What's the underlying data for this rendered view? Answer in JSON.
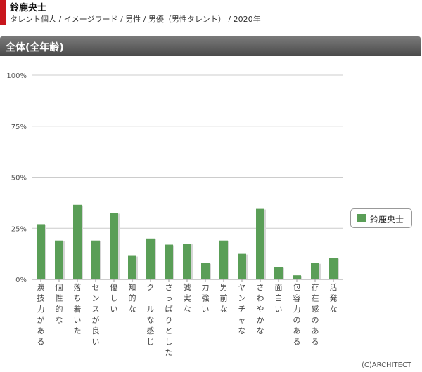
{
  "header": {
    "name": "鈴鹿央士",
    "breadcrumb": "タレント個人 / イメージワード / 男性 / 男優（男性タレント） / 2020年"
  },
  "section": {
    "title": "全体(全年齢)"
  },
  "legend": {
    "label": "鈴鹿央士"
  },
  "credit": "(C)ARCHITECT",
  "colors": {
    "accent": "#c8161d",
    "bar": "#5a9e57",
    "grid": "#cccccc"
  },
  "chart_data": {
    "type": "bar",
    "categories": [
      "演技力がある",
      "個性的な",
      "落ち着いた",
      "センスが良い",
      "優しい",
      "知的な",
      "クールな感じ",
      "さっぱりとした",
      "誠実な",
      "力強い",
      "男前な",
      "ヤンチャな",
      "さわやかな",
      "面白い",
      "包容力のある",
      "存在感のある",
      "活発な"
    ],
    "series": [
      {
        "name": "鈴鹿央士",
        "values": [
          27,
          19,
          36.5,
          19,
          32.5,
          11.5,
          20,
          17,
          17.5,
          8,
          19,
          12.5,
          34.5,
          6,
          2,
          8,
          10.5
        ]
      }
    ],
    "yticks": [
      "0%",
      "25%",
      "50%",
      "75%",
      "100%"
    ],
    "ylim": [
      0,
      100
    ],
    "grid": true,
    "legend_position": "right"
  }
}
